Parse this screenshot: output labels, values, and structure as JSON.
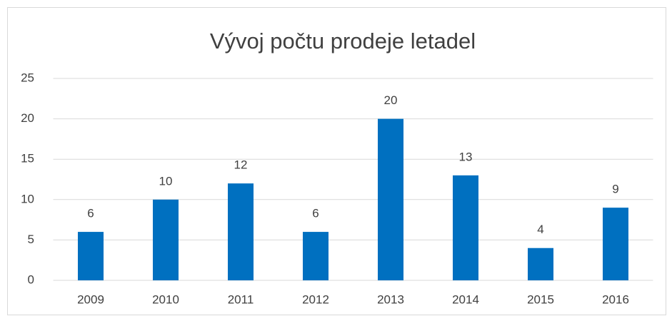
{
  "chart_data": {
    "type": "bar",
    "title": "Vývoj počtu prodeje letadel",
    "categories": [
      "2009",
      "2010",
      "2011",
      "2012",
      "2013",
      "2014",
      "2015",
      "2016"
    ],
    "values": [
      6,
      10,
      12,
      6,
      20,
      13,
      4,
      9
    ],
    "color": "#0070c0",
    "ylim": [
      0,
      25
    ],
    "yticks": [
      0,
      5,
      10,
      15,
      20,
      25
    ],
    "grid": true,
    "data_labels": true
  }
}
